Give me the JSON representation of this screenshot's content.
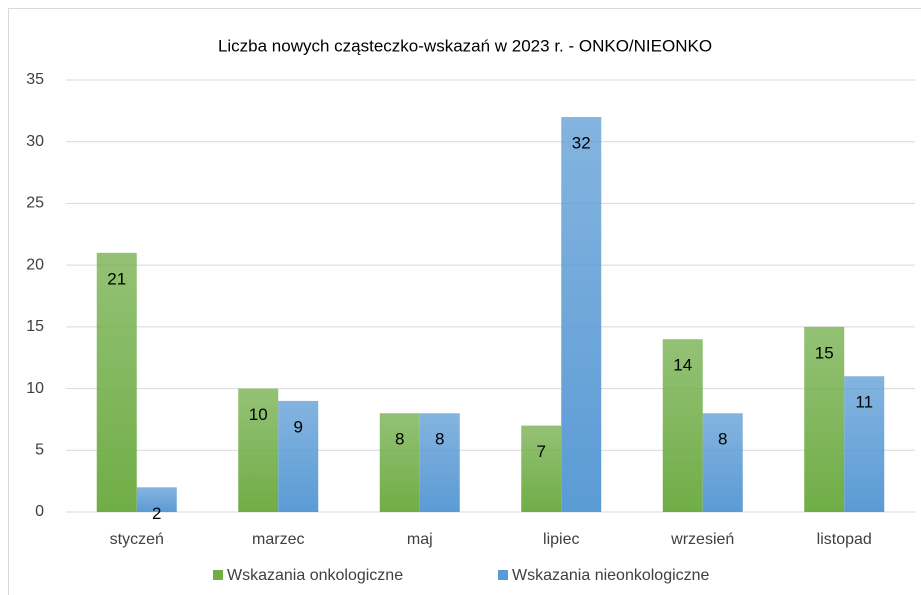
{
  "chart_data": {
    "type": "bar",
    "title": "Liczba nowych cząsteczko-wskazań w 2023 r. - ONKO/NIEONKO",
    "categories": [
      "styczeń",
      "marzec",
      "maj",
      "lipiec",
      "wrzesień",
      "listopad"
    ],
    "series": [
      {
        "name": "Wskazania onkologiczne",
        "color": "#70ad47",
        "values": [
          21,
          10,
          8,
          7,
          14,
          15
        ]
      },
      {
        "name": "Wskazania nieonkologiczne",
        "color": "#5b9bd5",
        "values": [
          2,
          9,
          8,
          32,
          8,
          11
        ]
      }
    ],
    "ylim": [
      0,
      35
    ],
    "yticks": [
      0,
      5,
      10,
      15,
      20,
      25,
      30,
      35
    ],
    "grid": true,
    "legend": "bottom"
  }
}
